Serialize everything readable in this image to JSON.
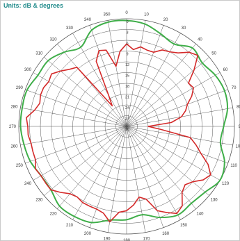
{
  "header": {
    "units": "Units: dB & degrees"
  },
  "chart_data": {
    "type": "polar-line",
    "title": "Units: dB & degrees",
    "angle_labels": [
      "0",
      "10",
      "20",
      "30",
      "40",
      "50",
      "60",
      "70",
      "80",
      "90",
      "100",
      "110",
      "120",
      "130",
      "140",
      "150",
      "160",
      "170",
      "180",
      "190",
      "200",
      "210",
      "220",
      "230",
      "240",
      "250",
      "260",
      "270",
      "280",
      "290",
      "300",
      "310",
      "320",
      "330",
      "340",
      "350"
    ],
    "radial_labels": [
      "0",
      "3",
      "6",
      "9",
      "12",
      "15",
      "18",
      "21",
      "24",
      "27",
      "30"
    ],
    "radial_range": [
      0,
      30
    ],
    "radial_step": 3,
    "angle_step": 10,
    "grid": true,
    "colors": {
      "envelope": "#3fae49",
      "measured": "#d42a2a",
      "grid": "#555555"
    },
    "series": [
      {
        "name": "",
        "color": "#3fae49",
        "angles": [
          0,
          10,
          20,
          30,
          40,
          50,
          60,
          70,
          80,
          90,
          100,
          110,
          120,
          130,
          140,
          150,
          160,
          170,
          180,
          190,
          200,
          210,
          220,
          230,
          240,
          250,
          260,
          270,
          280,
          290,
          300,
          310,
          320,
          330,
          340,
          350
        ],
        "values": [
          0.5,
          1,
          2.5,
          3.5,
          1.5,
          2.5,
          1.5,
          1,
          1.5,
          3,
          3.5,
          1,
          0,
          1.5,
          2,
          1.5,
          3,
          5,
          4,
          3.5,
          1.5,
          1,
          1,
          2.5,
          2.5,
          1.5,
          1,
          0.5,
          0.5,
          0.5,
          1.5,
          1.5,
          3,
          4.5,
          1.5,
          0.5
        ]
      },
      {
        "name": "",
        "color": "#d42a2a",
        "angles": [
          0,
          5,
          10,
          15,
          20,
          25,
          30,
          35,
          40,
          45,
          50,
          55,
          60,
          65,
          70,
          75,
          80,
          85,
          90,
          95,
          100,
          105,
          110,
          115,
          120,
          125,
          130,
          135,
          140,
          145,
          150,
          155,
          160,
          165,
          170,
          175,
          180,
          185,
          190,
          195,
          200,
          205,
          210,
          215,
          220,
          225,
          230,
          235,
          240,
          245,
          250,
          255,
          260,
          265,
          270,
          275,
          280,
          285,
          290,
          295,
          300,
          305,
          310,
          315,
          320,
          325,
          330,
          335,
          340,
          345,
          350,
          355
        ],
        "values": [
          7,
          8.5,
          7.5,
          8,
          8,
          6.5,
          6,
          5,
          3,
          2,
          5.5,
          9,
          8.5,
          10,
          12,
          13,
          14.5,
          17.5,
          24,
          20.5,
          12,
          10,
          8,
          5,
          3,
          4,
          6,
          7,
          6,
          3,
          2,
          3.5,
          5,
          9,
          10,
          8,
          6.5,
          6,
          3,
          5,
          5.5,
          5.5,
          5.5,
          6,
          5.5,
          4,
          2.5,
          2.5,
          2.5,
          2,
          3,
          3,
          3,
          2.5,
          2.5,
          2,
          4,
          5,
          4.5,
          4.5,
          5,
          4.5,
          6,
          7.5,
          8.5,
          23,
          20,
          10,
          7.5,
          8,
          13,
          9
        ]
      }
    ]
  }
}
